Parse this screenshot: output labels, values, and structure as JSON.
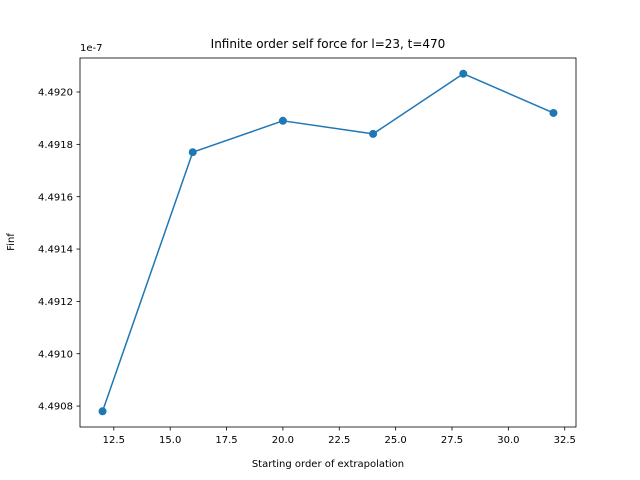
{
  "chart_data": {
    "type": "line",
    "title": "Infinite order self force for l=23, t=470",
    "xlabel": "Starting order of extrapolation",
    "ylabel": "Finf",
    "y_offset_text": "1e-7",
    "xlim": [
      11.0,
      33.0
    ],
    "ylim": [
      4.49072,
      4.49213
    ],
    "x_ticks": [
      12.5,
      15.0,
      17.5,
      20.0,
      22.5,
      25.0,
      27.5,
      30.0,
      32.5
    ],
    "x_tick_labels": [
      "12.5",
      "15.0",
      "17.5",
      "20.0",
      "22.5",
      "25.0",
      "27.5",
      "30.0",
      "32.5"
    ],
    "y_ticks": [
      4.4908,
      4.491,
      4.4912,
      4.4914,
      4.4916,
      4.4918,
      4.492
    ],
    "y_tick_labels": [
      "4.4908",
      "4.4910",
      "4.4912",
      "4.4914",
      "4.4916",
      "4.4918",
      "4.4920"
    ],
    "grid": false,
    "marker": "circle",
    "series": [
      {
        "x": [
          12,
          16,
          20,
          24,
          28,
          32
        ],
        "values": [
          4.49078,
          4.49177,
          4.49189,
          4.49184,
          4.49207,
          4.49192
        ],
        "color": "#1f77b4"
      }
    ]
  }
}
